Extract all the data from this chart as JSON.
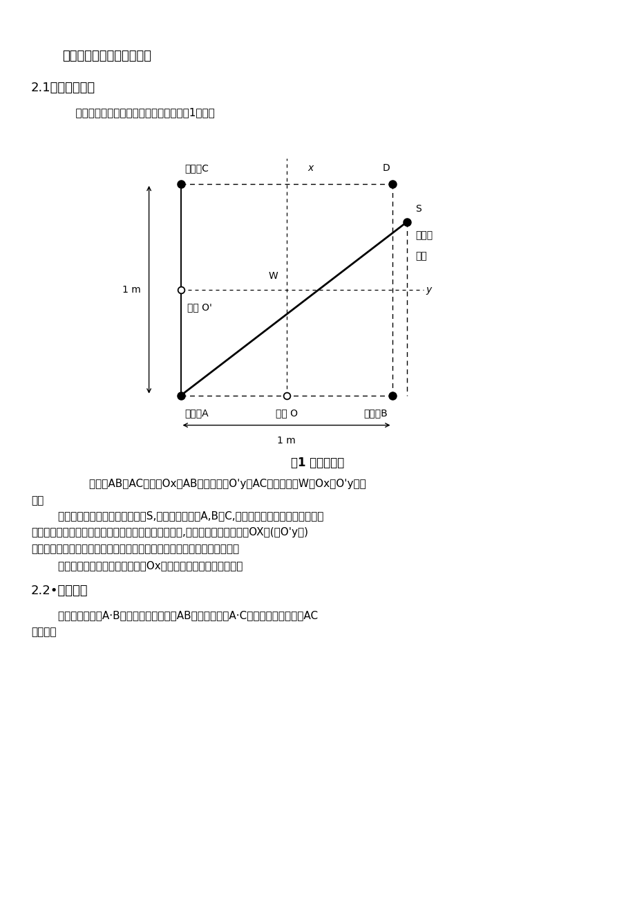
{
  "title": "设计要求与本设计功能概述",
  "section_21": "2.1、任务要求：",
  "intro_text": "    设计并制作一声音导引系统，示意图如图1所示。",
  "fig_caption": "图1 系统示意图",
  "desc1_indent": "        图中，AB与AC垂直，Ox是AB的中垂线，O'y是AC的中垂线，W是Ox和O'y的交",
  "desc1_cont": "点。",
  "desc2_line1": "        声音导引系统有一个可移动声源S,三个声音接收器A,B和C,声音接收器之间可以有线连接。",
  "desc2_line2": "声音接收器能利用可移动声源和接收器之间的不同距离,产生一个可移动声源离OX线(或O'y线)",
  "desc2_line3": "的误差信号，并用无线方式将此误差信号传输至可移动声源，引导其运动。",
  "desc3": "        可移动声源运动的起始点必须在Ox线右侧，位置可以任意指定。",
  "section_22": "2.2•测距方案",
  "desc4_line1": "        测距思想：根据A·B两点确定小车距直线AB的距离，根据A·C两点确定小车距直线AC",
  "desc4_line2": "的距离。",
  "background_color": "#ffffff",
  "note_1m": "1 m",
  "label_jieshouqi_C": "接收器C",
  "label_x": "x",
  "label_D": "D",
  "label_S": "S",
  "label_keyidong": "可移动",
  "label_shengyuan": "声源",
  "label_W": "W",
  "label_y": "y",
  "label_zhongdian_O_prime": "中点 O'",
  "label_jieshouqi_A": "接收器A",
  "label_zhongdian_O": "中点 O",
  "label_jieshouqi_B": "接收器B"
}
